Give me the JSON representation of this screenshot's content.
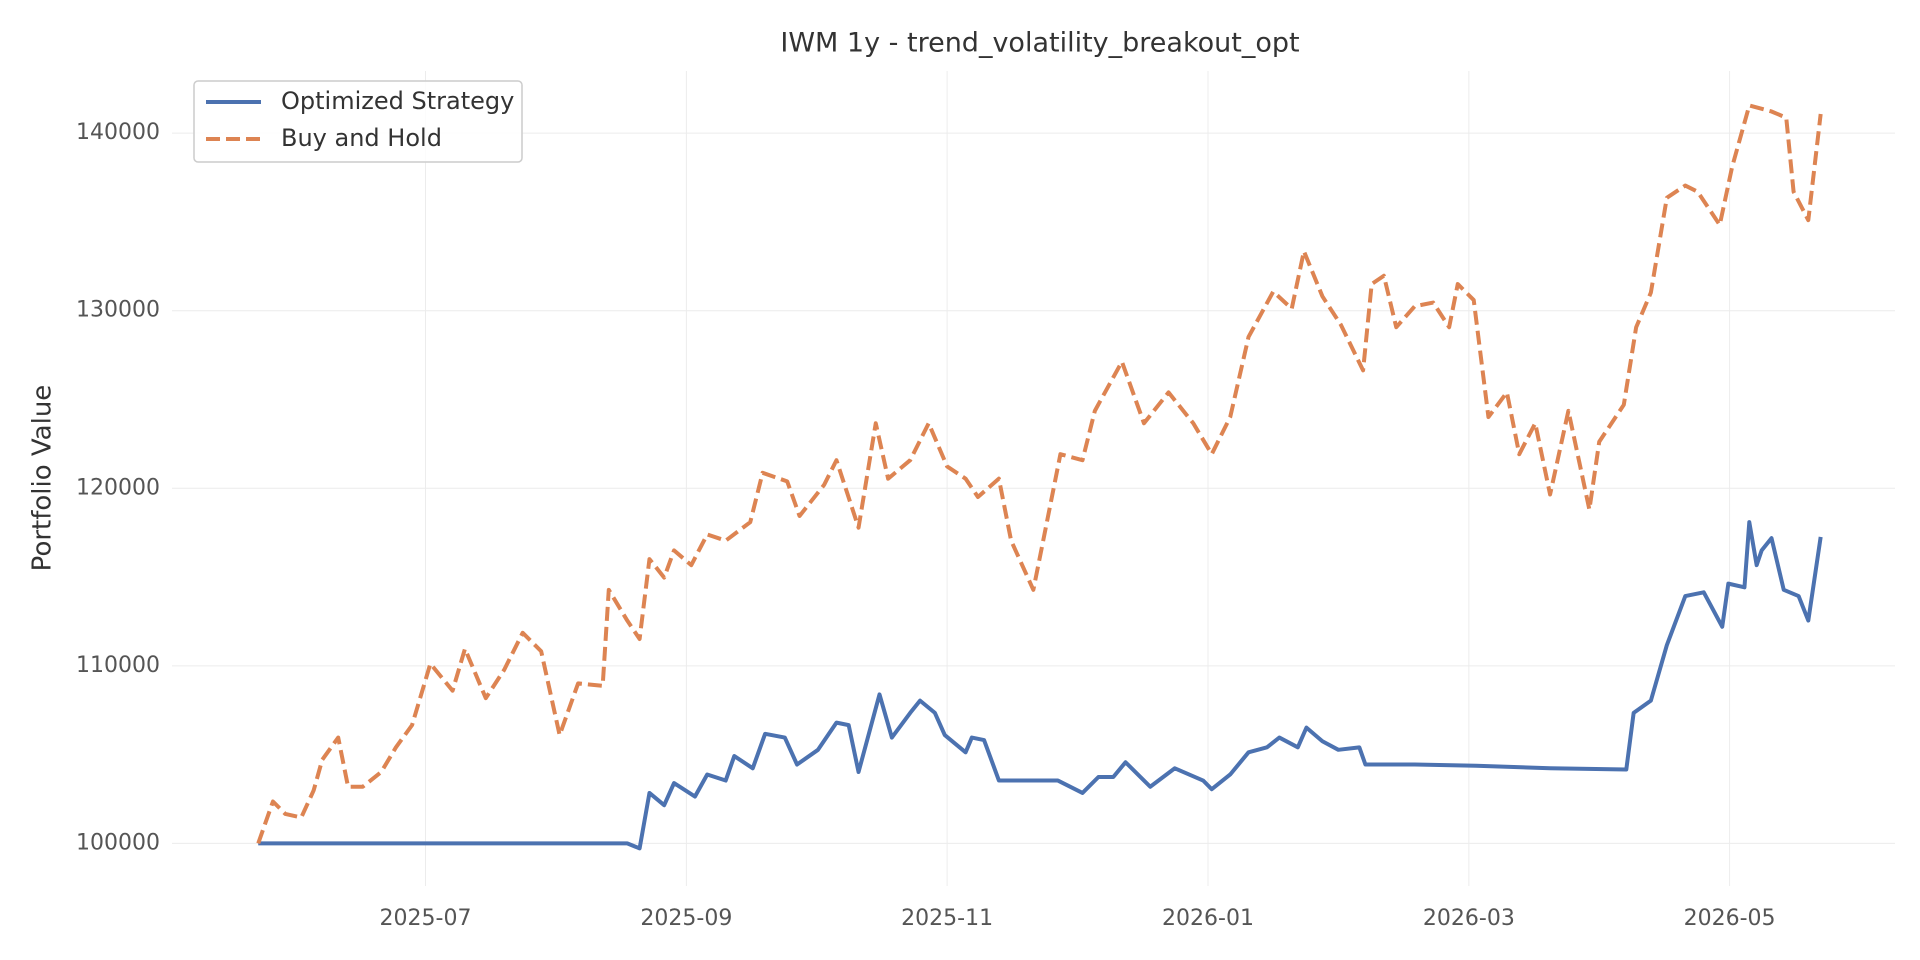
{
  "chart_data": {
    "type": "line",
    "title": "IWM 1y - trend_volatility_breakout_opt",
    "y_label": "Portfolio Value",
    "xlim": [
      2025.338,
      2026.439
    ],
    "ylim": [
      97600,
      143500
    ],
    "xticks": [
      {
        "value": 2025.5,
        "label": "2025-07"
      },
      {
        "value": 2025.6667,
        "label": "2025-09"
      },
      {
        "value": 2025.8333,
        "label": "2025-11"
      },
      {
        "value": 2026.0,
        "label": "2026-01"
      },
      {
        "value": 2026.1667,
        "label": "2026-03"
      },
      {
        "value": 2026.3333,
        "label": "2026-05"
      }
    ],
    "yticks": [
      100000,
      110000,
      120000,
      130000,
      140000
    ],
    "grid": true,
    "legend": "upper left",
    "series": [
      {
        "name": "Optimized Strategy",
        "color": "#4c72b0",
        "dash": "solid",
        "x": [
          2025.3931,
          2025.6289,
          2025.6368,
          2025.6431,
          2025.6525,
          2025.6588,
          2025.6722,
          2025.68,
          2025.6918,
          2025.6973,
          2025.7091,
          2025.717,
          2025.7296,
          2025.7374,
          2025.7508,
          2025.7626,
          2025.7704,
          2025.7767,
          2025.7901,
          2025.798,
          2025.8097,
          2025.816,
          2025.8255,
          2025.8318,
          2025.8451,
          2025.8491,
          2025.8569,
          2025.8664,
          2025.9041,
          2025.9198,
          2025.93,
          2025.9395,
          2025.9473,
          2025.9631,
          2025.9788,
          2025.9969,
          2026.0024,
          2026.0142,
          2026.0259,
          2026.0377,
          2026.0456,
          2026.0574,
          2026.0629,
          2026.0731,
          2026.0833,
          2026.0967,
          2026.1006,
          2026.1321,
          2026.1714,
          2026.2186,
          2026.2673,
          2026.272,
          2026.283,
          2026.2932,
          2026.305,
          2026.3168,
          2026.3286,
          2026.3325,
          2026.3428,
          2026.3459,
          2026.3506,
          2026.3538,
          2026.3601,
          2026.3679,
          2026.3774,
          2026.3836,
          2026.3915
        ],
        "values": [
          100000,
          100000,
          99720,
          102840,
          102150,
          103400,
          102640,
          103880,
          103540,
          104920,
          104230,
          106170,
          105960,
          104440,
          105270,
          106800,
          106660,
          104020,
          108390,
          105960,
          107350,
          108040,
          107350,
          106100,
          105130,
          105960,
          105820,
          103540,
          103540,
          102840,
          103740,
          103740,
          104570,
          103190,
          104230,
          103540,
          103050,
          103880,
          105130,
          105410,
          105960,
          105410,
          106520,
          105750,
          105270,
          105410,
          104440,
          104440,
          104370,
          104230,
          104160,
          107350,
          108040,
          111160,
          113930,
          114140,
          112200,
          114630,
          114420,
          118090,
          115670,
          116500,
          117190,
          114280,
          113930,
          112550,
          117260
        ]
      },
      {
        "name": "Buy and Hold",
        "color": "#dd8452",
        "dash": "dashed",
        "x": [
          2025.3931,
          2025.4025,
          2025.4104,
          2025.4206,
          2025.4285,
          2025.434,
          2025.4442,
          2025.4505,
          2025.4599,
          2025.4717,
          2025.4811,
          2025.4914,
          2025.5031,
          2025.5173,
          2025.5252,
          2025.5385,
          2025.5503,
          2025.5621,
          2025.5739,
          2025.5857,
          2025.5975,
          2025.6132,
          2025.6171,
          2025.6289,
          2025.6368,
          2025.6431,
          2025.6525,
          2025.6588,
          2025.6698,
          2025.68,
          2025.6918,
          2025.7075,
          2025.7154,
          2025.7311,
          2025.739,
          2025.7547,
          2025.7626,
          2025.7767,
          2025.7877,
          2025.7956,
          2025.8097,
          2025.8215,
          2025.8333,
          2025.8451,
          2025.853,
          2025.8664,
          2025.8742,
          2025.8884,
          2025.8947,
          2025.9057,
          2025.9198,
          2025.9277,
          2025.945,
          2025.9591,
          2025.9748,
          2025.9906,
          2026.0024,
          2026.0142,
          2026.0259,
          2026.0417,
          2026.0535,
          2026.0613,
          2026.0731,
          2026.0849,
          2026.0991,
          2026.1046,
          2026.1124,
          2026.1203,
          2026.1321,
          2026.1439,
          2026.1541,
          2026.1596,
          2026.1698,
          2026.1792,
          2026.191,
          2026.1989,
          2026.2091,
          2026.2186,
          2026.2303,
          2026.2437,
          2026.25,
          2026.2657,
          2026.2736,
          2026.283,
          2026.2932,
          2026.305,
          2026.3129,
          2026.327,
          2026.3349,
          2026.3459,
          2026.3601,
          2026.3695,
          2026.3742,
          2026.3836,
          2026.3915
        ],
        "values": [
          100000,
          102360,
          101660,
          101460,
          102980,
          104710,
          105960,
          103190,
          103190,
          104020,
          105410,
          106660,
          110120,
          108600,
          110960,
          108180,
          109780,
          111860,
          110820,
          106100,
          109010,
          108870,
          114280,
          112550,
          111510,
          116010,
          114970,
          116500,
          115670,
          117400,
          117050,
          118090,
          120870,
          120390,
          118440,
          120190,
          121580,
          117780,
          123660,
          120540,
          121580,
          123660,
          121230,
          120540,
          119510,
          120540,
          117050,
          114280,
          117050,
          121920,
          121580,
          124360,
          127130,
          123660,
          125400,
          123660,
          121920,
          124010,
          128520,
          131080,
          130110,
          133350,
          130810,
          129210,
          126640,
          131500,
          131970,
          129070,
          130250,
          130460,
          129070,
          131500,
          130600,
          124010,
          125400,
          121920,
          123660,
          119650,
          124360,
          118800,
          122620,
          124700,
          129070,
          131020,
          136360,
          137050,
          136700,
          134830,
          138090,
          141560,
          141220,
          140870,
          136700,
          135100,
          141080
        ]
      }
    ]
  }
}
